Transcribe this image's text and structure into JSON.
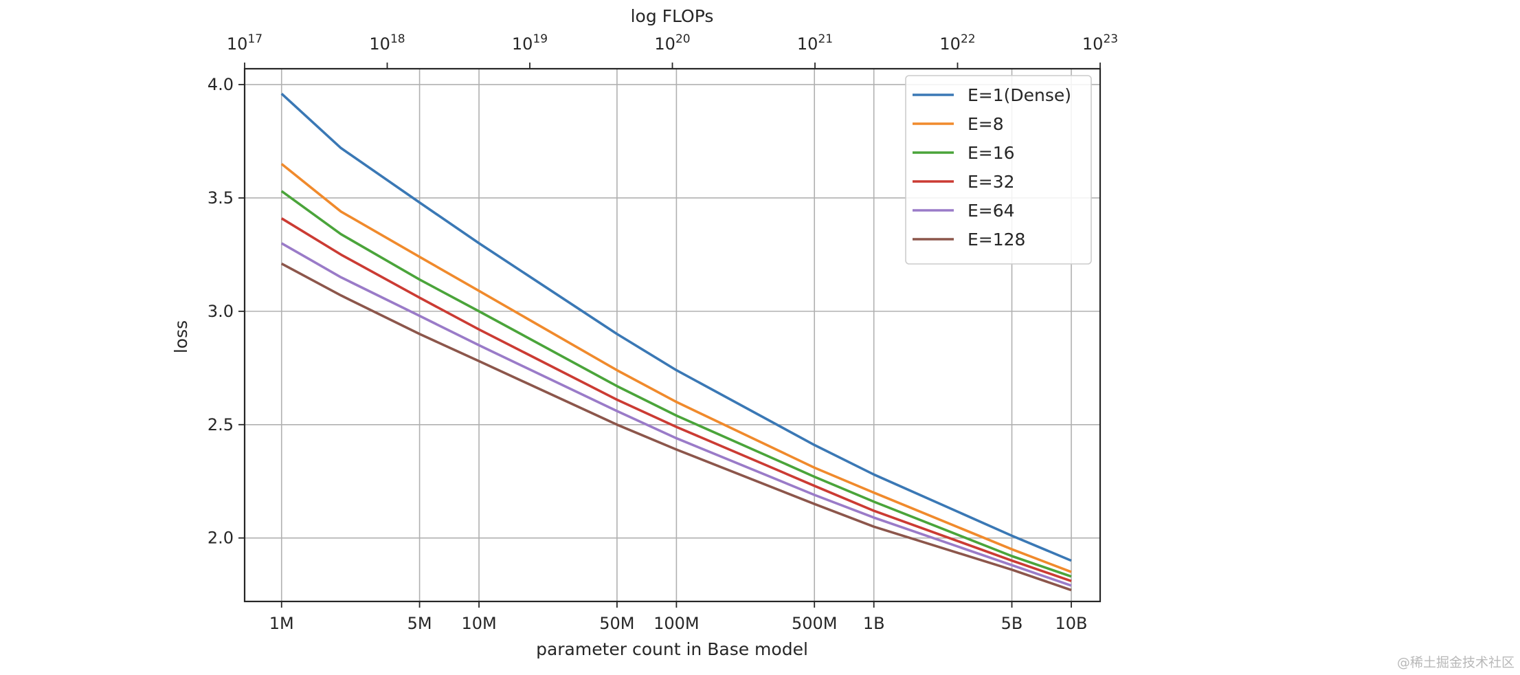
{
  "chart_data": {
    "type": "line",
    "title": "",
    "xlabel": "parameter count in Base model",
    "ylabel": "loss",
    "xscale": "log",
    "xlim": [
      650000,
      14000000000
    ],
    "ylim": [
      1.72,
      4.07
    ],
    "grid": true,
    "x_ticks": [
      {
        "value": 1000000,
        "label": "1M"
      },
      {
        "value": 5000000,
        "label": "5M"
      },
      {
        "value": 10000000,
        "label": "10M"
      },
      {
        "value": 50000000,
        "label": "50M"
      },
      {
        "value": 100000000,
        "label": "100M"
      },
      {
        "value": 500000000,
        "label": "500M"
      },
      {
        "value": 1000000000,
        "label": "1B"
      },
      {
        "value": 5000000000,
        "label": "5B"
      },
      {
        "value": 10000000000,
        "label": "10B"
      }
    ],
    "y_ticks": [
      {
        "value": 2.0,
        "label": "2.0"
      },
      {
        "value": 2.5,
        "label": "2.5"
      },
      {
        "value": 3.0,
        "label": "3.0"
      },
      {
        "value": 3.5,
        "label": "3.5"
      },
      {
        "value": 4.0,
        "label": "4.0"
      }
    ],
    "top_axis": {
      "label": "log FLOPs",
      "scale": "log",
      "ticks": [
        {
          "value": 1e+17,
          "base": "10",
          "exp": "17"
        },
        {
          "value": 1e+18,
          "base": "10",
          "exp": "18"
        },
        {
          "value": 1e+19,
          "base": "10",
          "exp": "19"
        },
        {
          "value": 1e+20,
          "base": "10",
          "exp": "20"
        },
        {
          "value": 1e+21,
          "base": "10",
          "exp": "21"
        },
        {
          "value": 1e+22,
          "base": "10",
          "exp": "22"
        },
        {
          "value": 1e+23,
          "base": "10",
          "exp": "23"
        }
      ],
      "xlim": [
        1e+17,
        1e+23
      ]
    },
    "x": [
      1000000,
      2000000,
      5000000,
      10000000,
      50000000,
      100000000,
      500000000,
      1000000000,
      5000000000,
      10000000000
    ],
    "series": [
      {
        "name": "E=1(Dense)",
        "color": "#3a78b5",
        "values": [
          3.96,
          3.72,
          3.48,
          3.3,
          2.9,
          2.74,
          2.41,
          2.28,
          2.01,
          1.9
        ]
      },
      {
        "name": "E=8",
        "color": "#f08a2c",
        "values": [
          3.65,
          3.44,
          3.24,
          3.09,
          2.74,
          2.6,
          2.31,
          2.2,
          1.95,
          1.85
        ]
      },
      {
        "name": "E=16",
        "color": "#4aa43a",
        "values": [
          3.53,
          3.34,
          3.14,
          3.0,
          2.67,
          2.54,
          2.27,
          2.16,
          1.92,
          1.83
        ]
      },
      {
        "name": "E=32",
        "color": "#cb3b33",
        "values": [
          3.41,
          3.25,
          3.06,
          2.92,
          2.61,
          2.49,
          2.23,
          2.12,
          1.9,
          1.81
        ]
      },
      {
        "name": "E=64",
        "color": "#9a7bc8",
        "values": [
          3.3,
          3.15,
          2.98,
          2.85,
          2.56,
          2.44,
          2.19,
          2.09,
          1.88,
          1.79
        ]
      },
      {
        "name": "E=128",
        "color": "#8c564b",
        "values": [
          3.21,
          3.07,
          2.9,
          2.78,
          2.5,
          2.39,
          2.15,
          2.05,
          1.86,
          1.77
        ]
      }
    ],
    "legend_position": "top-right"
  },
  "watermark": "@稀土掘金技术社区"
}
